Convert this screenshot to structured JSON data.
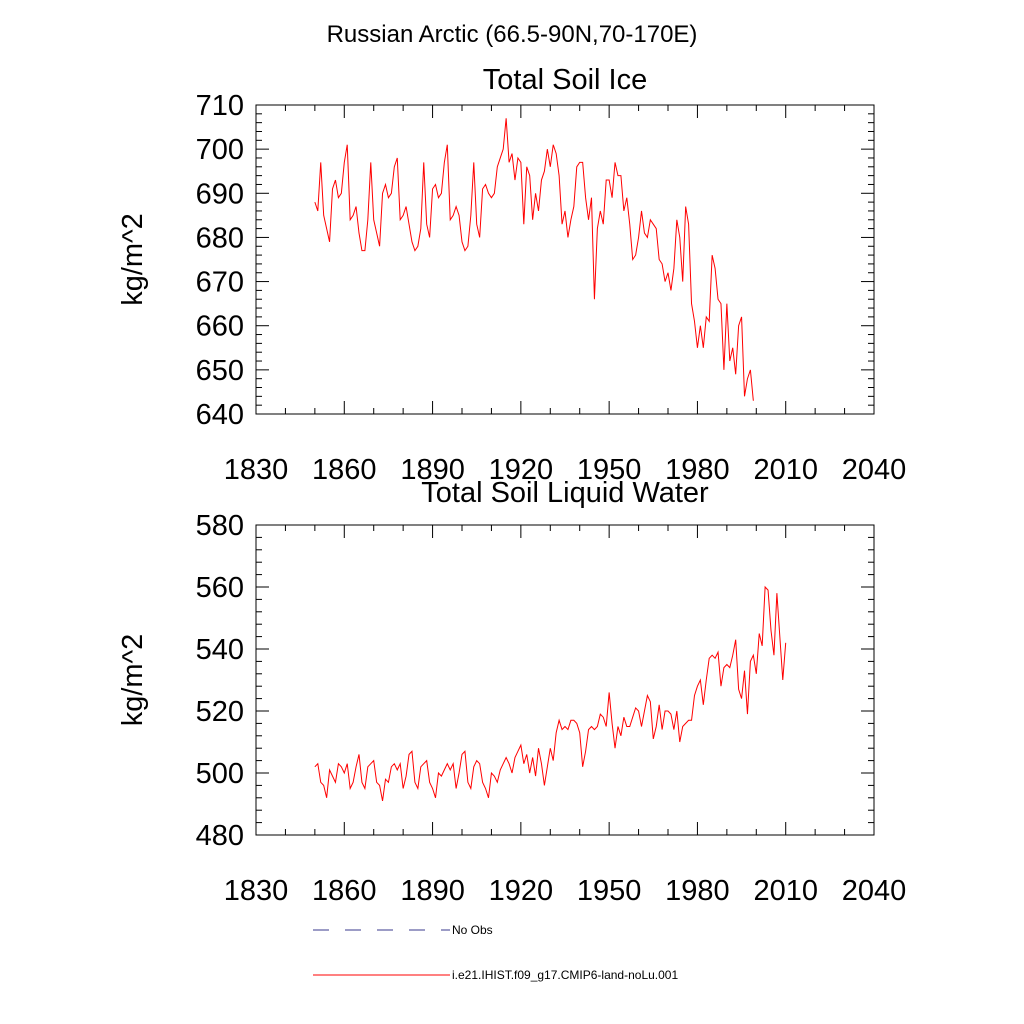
{
  "suptitle": "Russian Arctic (66.5-90N,70-170E)",
  "legend": {
    "obs_label": "No Obs",
    "model_label": "i.e21.IHIST.f09_g17.CMIP6-land-noLu.001",
    "obs_color": "#3a3a8c",
    "model_color": "#ff0000"
  },
  "chart_data": [
    {
      "type": "line",
      "title": "Total Soil Ice",
      "xlabel": "",
      "ylabel": "kg/m^2",
      "xlim": [
        1830,
        2040
      ],
      "ylim": [
        640,
        710
      ],
      "xticks": [
        "1830",
        "1860",
        "1890",
        "1920",
        "1950",
        "1980",
        "2010",
        "2040"
      ],
      "yticks": [
        "640",
        "650",
        "660",
        "670",
        "680",
        "690",
        "700",
        "710"
      ],
      "grid": false,
      "series": [
        {
          "name": "i.e21.IHIST.f09_g17.CMIP6-land-noLu.001",
          "color": "#ff0000",
          "x_start": 1850,
          "values": [
            688,
            686,
            697,
            685,
            682,
            679,
            691,
            693,
            689,
            690,
            697,
            701,
            684,
            685,
            687,
            681,
            677,
            677,
            684,
            697,
            684,
            681,
            678,
            690,
            692,
            689,
            690,
            696,
            698,
            684,
            685,
            687,
            683,
            679,
            677,
            678,
            682,
            697,
            683,
            680,
            691,
            692,
            689,
            690,
            697,
            701,
            684,
            685,
            687,
            685,
            679,
            677,
            678,
            685,
            697,
            683,
            680,
            691,
            692,
            690,
            689,
            690,
            696,
            698,
            700,
            707,
            697,
            699,
            693,
            698,
            697,
            683,
            696,
            694,
            684,
            690,
            686,
            693,
            695,
            700,
            696,
            701,
            699,
            694,
            683,
            686,
            680,
            684,
            687,
            696,
            697,
            697,
            689,
            684,
            689,
            666,
            682,
            686,
            683,
            693,
            693,
            689,
            697,
            694,
            694,
            686,
            689,
            683,
            675,
            676,
            680,
            686,
            681,
            680,
            684,
            683,
            682,
            675,
            674,
            670,
            672,
            668,
            673,
            684,
            680,
            670,
            687,
            683,
            665,
            661,
            655,
            660,
            655,
            662,
            661,
            676,
            673,
            666,
            665,
            650,
            665,
            652,
            655,
            649,
            660,
            662,
            644,
            648,
            650,
            643
          ]
        }
      ]
    },
    {
      "type": "line",
      "title": "Total Soil Liquid Water",
      "xlabel": "",
      "ylabel": "kg/m^2",
      "xlim": [
        1830,
        2040
      ],
      "ylim": [
        480,
        580
      ],
      "xticks": [
        "1830",
        "1860",
        "1890",
        "1920",
        "1950",
        "1980",
        "2010",
        "2040"
      ],
      "yticks": [
        "480",
        "500",
        "520",
        "540",
        "560",
        "580"
      ],
      "grid": false,
      "series": [
        {
          "name": "i.e21.IHIST.f09_g17.CMIP6-land-noLu.001",
          "color": "#ff0000",
          "x_start": 1850,
          "values": [
            502,
            503,
            497,
            496,
            492,
            501,
            499,
            497,
            503,
            502,
            500,
            503,
            495,
            497,
            502,
            506,
            497,
            495,
            502,
            503,
            504,
            497,
            496,
            491,
            498,
            497,
            502,
            503,
            501,
            503,
            495,
            499,
            506,
            507,
            497,
            495,
            502,
            503,
            504,
            497,
            495,
            492,
            500,
            499,
            501,
            503,
            501,
            503,
            495,
            500,
            506,
            507,
            497,
            495,
            502,
            504,
            503,
            497,
            495,
            492,
            500,
            499,
            497,
            501,
            503,
            505,
            503,
            500,
            505,
            507,
            509,
            503,
            506,
            500,
            505,
            499,
            508,
            503,
            496,
            502,
            508,
            504,
            513,
            517,
            514,
            515,
            514,
            517,
            517,
            516,
            513,
            502,
            507,
            514,
            515,
            514,
            515,
            519,
            518,
            515,
            526,
            516,
            508,
            515,
            512,
            518,
            515,
            515,
            518,
            521,
            520,
            515,
            520,
            525,
            523,
            511,
            515,
            522,
            514,
            520,
            520,
            519,
            514,
            520,
            510,
            515,
            516,
            517,
            517,
            525,
            528,
            530,
            522,
            530,
            537,
            538,
            537,
            539,
            528,
            534,
            535,
            534,
            538,
            543,
            527,
            524,
            533,
            519,
            536,
            538,
            532,
            545,
            541,
            560,
            559,
            546,
            538,
            558,
            544,
            530,
            542
          ]
        }
      ]
    }
  ]
}
